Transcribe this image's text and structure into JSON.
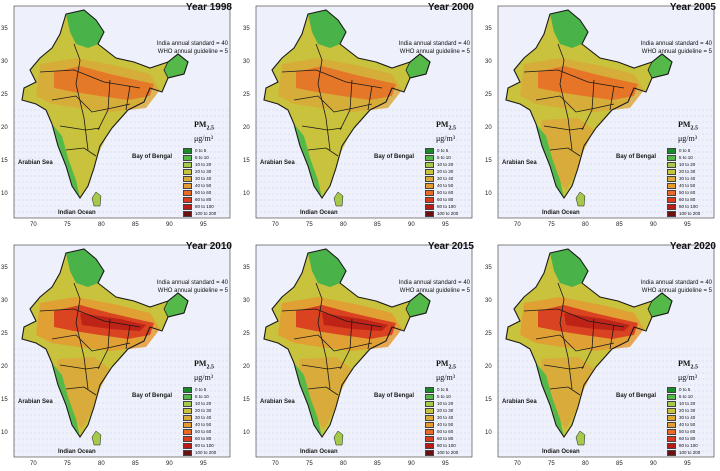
{
  "figure": {
    "panels": [
      {
        "title": "Year 1998",
        "polluted_level": 0.45
      },
      {
        "title": "Year 2000",
        "polluted_level": 0.5
      },
      {
        "title": "Year 2005",
        "polluted_level": 0.62
      },
      {
        "title": "Year 2010",
        "polluted_level": 0.78
      },
      {
        "title": "Year 2015",
        "polluted_level": 0.85
      },
      {
        "title": "Year 2020",
        "polluted_level": 0.8
      }
    ],
    "standard_line1": "India annual standard = 40",
    "standard_line2": "WHO annual guideline = 5",
    "pm_label": "PM",
    "pm_sub": "2.5",
    "pm_unit": "μg/m³",
    "sea_labels": {
      "arabian": "Arabian Sea",
      "bengal": "Bay of Bengal",
      "indian": "Indian Ocean"
    },
    "legend": [
      {
        "label": "0 to 5",
        "color": "#1a8a2a"
      },
      {
        "label": "5 to 10",
        "color": "#55b94a"
      },
      {
        "label": "10 to 20",
        "color": "#a6c94c"
      },
      {
        "label": "20 to 30",
        "color": "#c9c23c"
      },
      {
        "label": "30 to 40",
        "color": "#d9a93a"
      },
      {
        "label": "40 to 50",
        "color": "#e59a32"
      },
      {
        "label": "50 to 60",
        "color": "#e86a24"
      },
      {
        "label": "60 to 80",
        "color": "#d93b1f"
      },
      {
        "label": "80 to 100",
        "color": "#b71c16"
      },
      {
        "label": "100 to 200",
        "color": "#6b0f0f"
      }
    ],
    "lat_ticks": [
      "35",
      "30",
      "25",
      "20",
      "15",
      "10"
    ],
    "lon_ticks": [
      "70",
      "75",
      "80",
      "85",
      "90",
      "95"
    ],
    "colors": {
      "sea": "#eef1fb",
      "border": "#1a1a1a",
      "himalaya": "#49b34a"
    }
  }
}
